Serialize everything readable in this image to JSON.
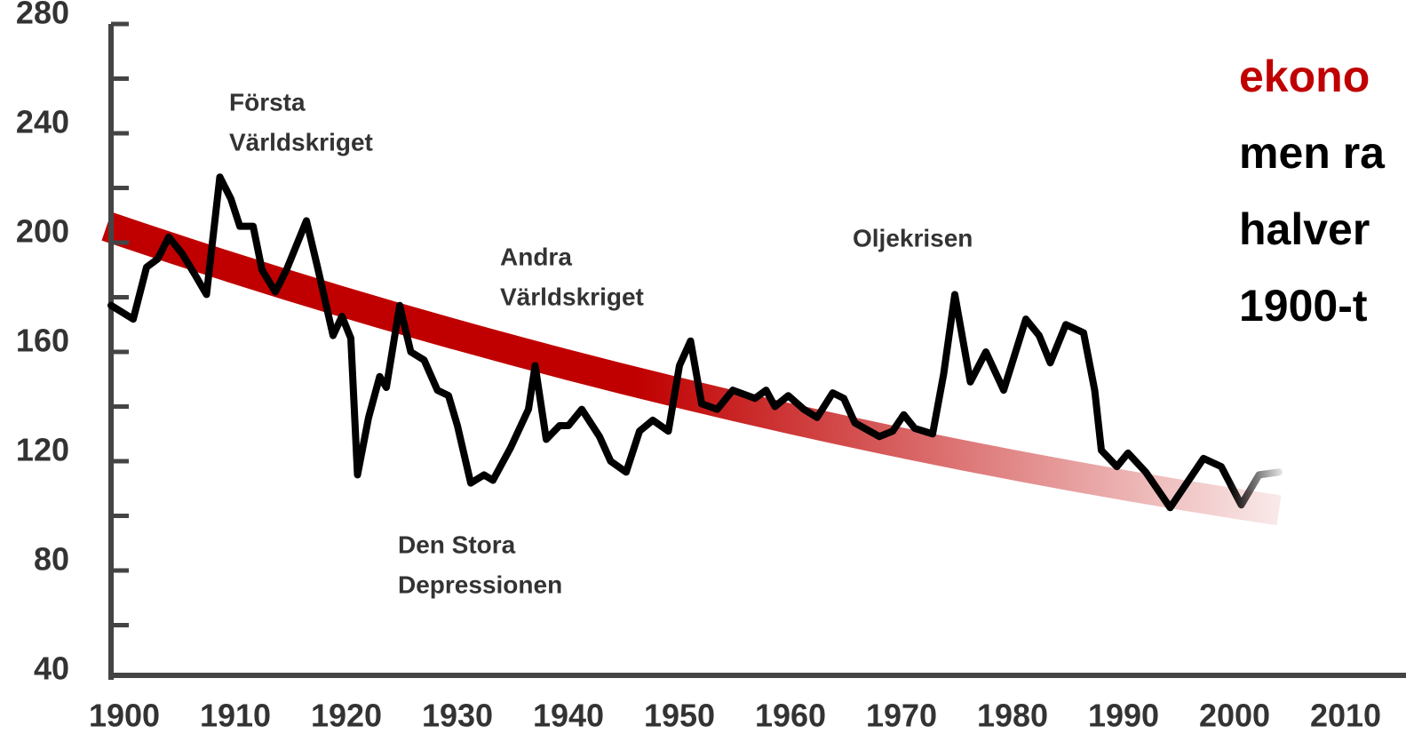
{
  "chart_data": {
    "type": "line",
    "xlim": [
      1898.4,
      2015.4
    ],
    "ylim": [
      40,
      280
    ],
    "xticks": [
      1900,
      1910,
      1920,
      1930,
      1940,
      1950,
      1960,
      1970,
      1980,
      1990,
      2000,
      2010
    ],
    "yticks": [
      40,
      80,
      120,
      160,
      200,
      240,
      280
    ],
    "yticks_minor": [
      60,
      100,
      140,
      180,
      220,
      260
    ],
    "color": "#000000",
    "x": [
      1898.8,
      1900.8,
      1902,
      1903,
      1904,
      1905.2,
      1906.4,
      1907.4,
      1908.6,
      1909.6,
      1910.4,
      1911.6,
      1912.4,
      1913.6,
      1914.6,
      1916.4,
      1917.4,
      1918.8,
      1919.6,
      1920.4,
      1921,
      1922,
      1923,
      1923.6,
      1924.8,
      1925.8,
      1927,
      1928.2,
      1929.2,
      1930,
      1931.2,
      1932.4,
      1933.2,
      1934.8,
      1936.4,
      1937,
      1938,
      1939.2,
      1940,
      1941.2,
      1942.8,
      1943.8,
      1945.2,
      1946.4,
      1947.6,
      1949,
      1950,
      1951,
      1952,
      1953.4,
      1954.8,
      1956.8,
      1957.8,
      1958.6,
      1959.8,
      1961.2,
      1962.4,
      1963.8,
      1964.8,
      1965.8,
      1968,
      1969.2,
      1970.2,
      1971.2,
      1972.8,
      1973.8,
      1974.8,
      1976.2,
      1977.6,
      1979.2,
      1981.2,
      1982.4,
      1983.4,
      1984.8,
      1986.4,
      1987.4,
      1988,
      1989.4,
      1990.4,
      1992,
      1994.2,
      1997.2,
      1998.8,
      2000.6,
      2002.2,
      2004
    ],
    "values": [
      177,
      172,
      191,
      194,
      202,
      196,
      188,
      181,
      224,
      216,
      206,
      206,
      190,
      182,
      190,
      208,
      191,
      166,
      173,
      165,
      115,
      136,
      151,
      147,
      177,
      160,
      157,
      146,
      144,
      133,
      112,
      115,
      113,
      125,
      139,
      155,
      128,
      133,
      133,
      139,
      129,
      120,
      116,
      131,
      135,
      131,
      155,
      164,
      141,
      139,
      146,
      143,
      146,
      140,
      144,
      139,
      136,
      145,
      143,
      134,
      129,
      131,
      137,
      132,
      130,
      152,
      181,
      149,
      160,
      146,
      172,
      166,
      156,
      170,
      167,
      146,
      124,
      118,
      123,
      116,
      103,
      121,
      118,
      104,
      115,
      116
    ],
    "trend": {
      "x": [
        1898.4,
        1950,
        2004
      ],
      "values": [
        206,
        145,
        102
      ],
      "color": "#c00000"
    },
    "annotations": [
      {
        "lines": [
          "Första",
          "Världskriget"
        ]
      },
      {
        "lines": [
          "Andra",
          "Världskriget"
        ]
      },
      {
        "lines": [
          "Oljekrisen"
        ]
      },
      {
        "lines": [
          "Den Stora",
          "Depressionen"
        ]
      }
    ],
    "side_text": [
      {
        "text": "ekono",
        "color": "#c00000"
      },
      {
        "text": "men ra",
        "color": "#000000"
      },
      {
        "text": "halver",
        "color": "#000000"
      },
      {
        "text": "1900-t",
        "color": "#000000"
      }
    ]
  }
}
